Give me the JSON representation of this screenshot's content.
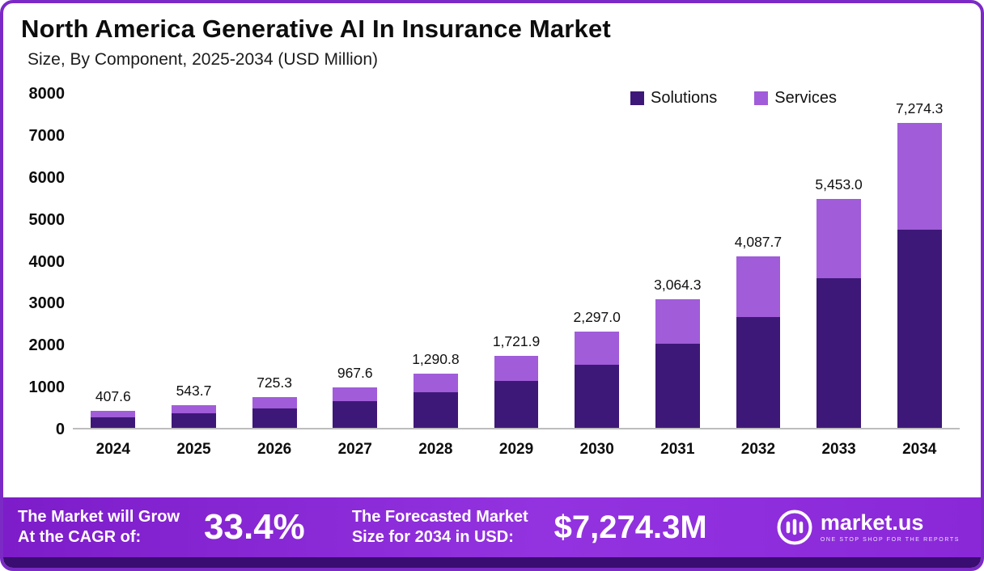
{
  "title": "North America Generative AI In Insurance Market",
  "subtitle": "Size, By Component, 2025-2034 (USD Million)",
  "legend": {
    "solutions": {
      "label": "Solutions",
      "color": "#3e1878"
    },
    "services": {
      "label": "Services",
      "color": "#a05cd9"
    }
  },
  "chart_data": {
    "type": "bar",
    "stacked": true,
    "title": "North America Generative AI In Insurance Market Size, By Component, 2025-2034 (USD Million)",
    "xlabel": "",
    "ylabel": "USD Million",
    "ylim": [
      0,
      8000
    ],
    "yticks": [
      0,
      1000,
      2000,
      3000,
      4000,
      5000,
      6000,
      7000,
      8000
    ],
    "grid": false,
    "legend_position": "top-right",
    "categories": [
      "2024",
      "2025",
      "2026",
      "2027",
      "2028",
      "2029",
      "2030",
      "2031",
      "2032",
      "2033",
      "2034"
    ],
    "series": [
      {
        "name": "Solutions",
        "color": "#3e1878",
        "values": [
          260.0,
          350.0,
          470.0,
          630.0,
          840.0,
          1110.0,
          1500.0,
          2000.0,
          2650.0,
          3560.0,
          4730.0
        ]
      },
      {
        "name": "Services",
        "color": "#a05cd9",
        "values": [
          147.6,
          193.7,
          255.3,
          337.6,
          450.8,
          611.9,
          797.0,
          1064.3,
          1437.7,
          1893.0,
          2544.3
        ]
      }
    ],
    "totals": [
      407.6,
      543.7,
      725.3,
      967.6,
      1290.8,
      1721.9,
      2297.0,
      3064.3,
      4087.7,
      5453.0,
      7274.3
    ],
    "total_labels": [
      "407.6",
      "543.7",
      "725.3",
      "967.6",
      "1,290.8",
      "1,721.9",
      "2,297.0",
      "3,064.3",
      "4,087.7",
      "5,453.0",
      "7,274.3"
    ]
  },
  "footer": {
    "cagr_label_line1": "The Market will Grow",
    "cagr_label_line2": "At the CAGR of:",
    "cagr_value": "33.4%",
    "forecast_label_line1": "The Forecasted Market",
    "forecast_label_line2": "Size for 2034 in USD:",
    "forecast_value": "$7,274.3M",
    "brand": "market.us",
    "tagline": "ONE STOP SHOP FOR THE REPORTS"
  }
}
